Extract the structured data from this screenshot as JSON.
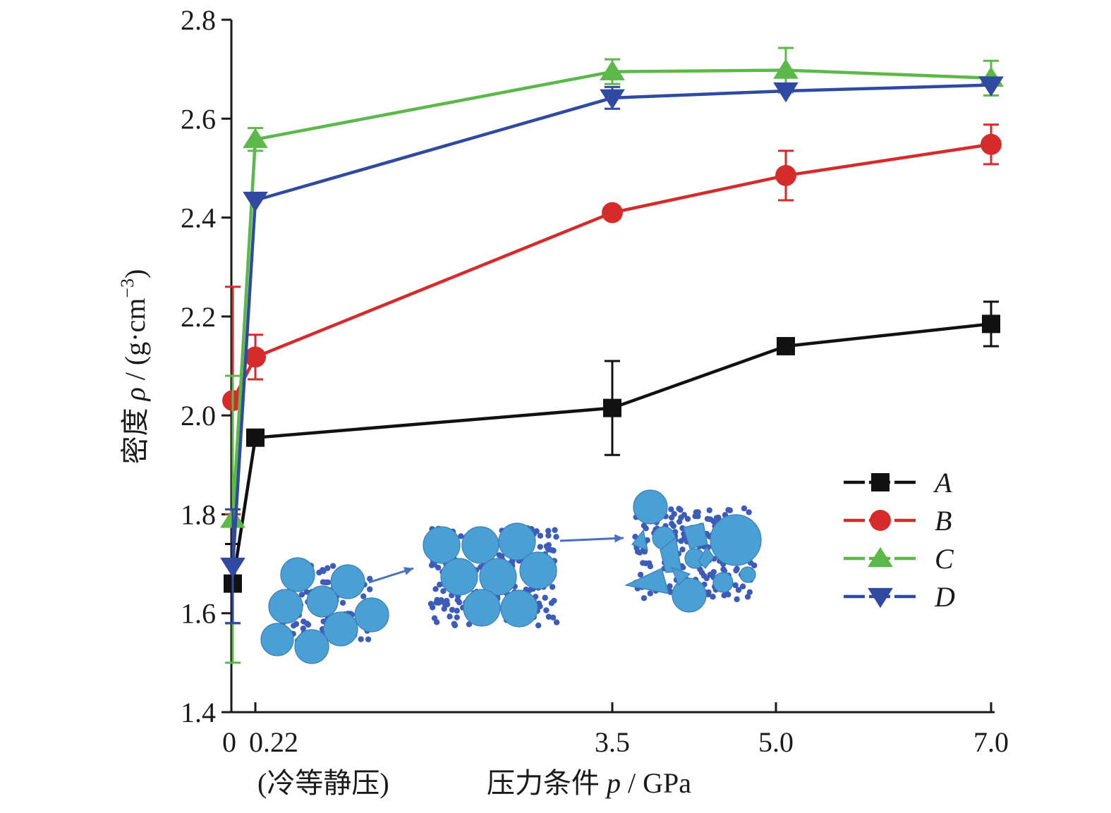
{
  "chart_data": {
    "type": "line",
    "x_ticks": [
      "0",
      "0.22",
      "3.5",
      "5.0",
      "7.0"
    ],
    "x_tick_values": [
      0,
      0.22,
      3.5,
      5.0,
      7.0
    ],
    "x_note": "(冷等静压)",
    "xlabel_prefix": "压力条件",
    "xlabel_symbol": "p",
    "xlabel_unit": " / GPa",
    "ylabel_prefix": "密度",
    "ylabel_symbol": "ρ",
    "ylabel_unit": " / (g·cm",
    "ylabel_exp": "−3",
    "ylabel_close": ")",
    "y_ticks": [
      "1.4",
      "1.6",
      "1.8",
      "2.0",
      "2.2",
      "2.4",
      "2.6",
      "2.8"
    ],
    "ylim": [
      1.4,
      2.8
    ],
    "legend_position": "right",
    "series": [
      {
        "name": "A",
        "color": "#111111",
        "marker": "square",
        "x": [
          0,
          0.22,
          3.5,
          5.05,
          7.0
        ],
        "y": [
          1.66,
          1.955,
          2.015,
          2.14,
          2.185
        ],
        "err": [
          0.08,
          0.0,
          0.095,
          0.0,
          0.045
        ]
      },
      {
        "name": "B",
        "color": "#d62b2b",
        "marker": "circle",
        "x": [
          0,
          0.22,
          3.5,
          5.05,
          7.0
        ],
        "y": [
          2.03,
          2.118,
          2.41,
          2.485,
          2.548
        ],
        "err": [
          0.23,
          0.045,
          0.0,
          0.05,
          0.04
        ]
      },
      {
        "name": "C",
        "color": "#5cb84a",
        "marker": "triangle-up",
        "x": [
          0,
          0.22,
          3.5,
          5.05,
          7.0
        ],
        "y": [
          1.79,
          2.558,
          2.695,
          2.698,
          2.682
        ],
        "err": [
          0.29,
          0.023,
          0.025,
          0.045,
          0.035
        ]
      },
      {
        "name": "D",
        "color": "#2f4aa0",
        "marker": "triangle-down",
        "x": [
          0,
          0.22,
          3.5,
          5.05,
          7.0
        ],
        "y": [
          1.695,
          2.435,
          2.642,
          2.656,
          2.668
        ],
        "err": [
          0.115,
          0.0,
          0.022,
          0.0,
          0.0
        ]
      }
    ]
  },
  "insets": [
    {
      "name": "packing-loose"
    },
    {
      "name": "packing-cold-isostatic"
    },
    {
      "name": "packing-high-pressure"
    }
  ]
}
